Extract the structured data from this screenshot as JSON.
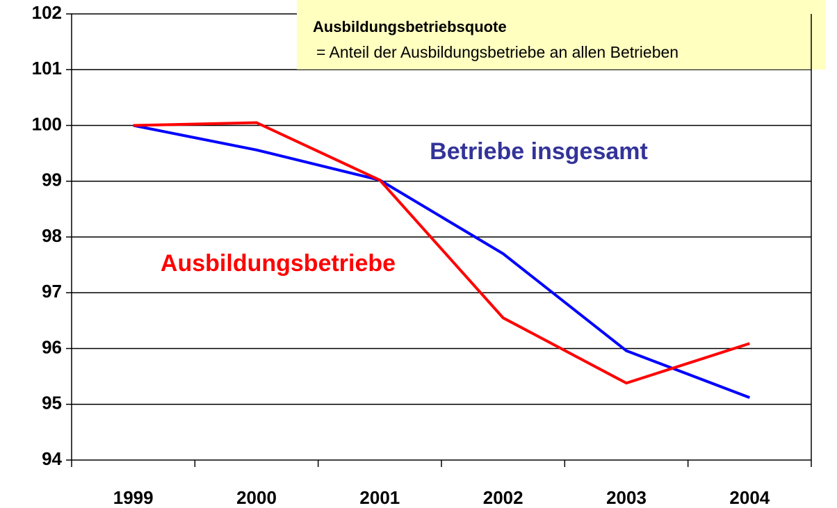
{
  "chart_data": {
    "type": "line",
    "categories": [
      "1999",
      "2000",
      "2001",
      "2002",
      "2003",
      "2004"
    ],
    "series": [
      {
        "name": "Betriebe insgesamt",
        "color": "#0000ff",
        "label_color": "#333399",
        "values": [
          100,
          99.56,
          99.02,
          97.7,
          95.96,
          95.12
        ]
      },
      {
        "name": "Ausbildungsbetriebe",
        "color": "#ff0000",
        "label_color": "#ff0000",
        "values": [
          100,
          100.05,
          99.02,
          96.55,
          95.38,
          96.09
        ]
      }
    ],
    "annotations": {
      "box_title": "Ausbildungsbetriebsquote",
      "box_text": "= Anteil der Ausbildungsbetriebe an allen Betrieben"
    },
    "ylim": [
      94,
      102
    ],
    "yticks": [
      94,
      95,
      96,
      97,
      98,
      99,
      100,
      101,
      102
    ],
    "grid": true
  }
}
